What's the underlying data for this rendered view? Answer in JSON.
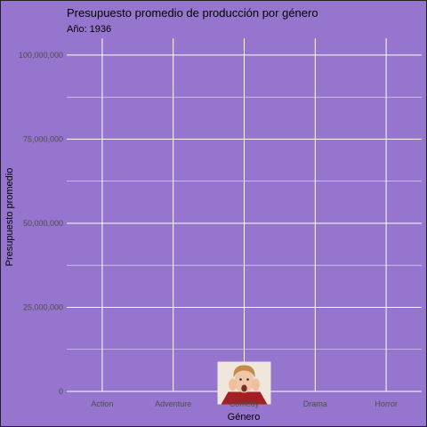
{
  "chart": {
    "title": "Presupuesto promedio de producción por género",
    "subtitle": "Año: 1936",
    "xlabel": "Género",
    "ylabel": "Presupuesto promedio"
  },
  "colors": {
    "background": "#9575cd",
    "grid": "#ffffff",
    "tick_text": "#4d4d4d"
  },
  "chart_data": {
    "type": "scatter",
    "title": "Presupuesto promedio de producción por género",
    "subtitle": "Año: 1936",
    "xlabel": "Género",
    "ylabel": "Presupuesto promedio",
    "categories": [
      "Action",
      "Adventure",
      "Comedy",
      "Drama",
      "Horror"
    ],
    "y_ticks": [
      0,
      25000000,
      50000000,
      75000000,
      100000000
    ],
    "y_tick_labels": [
      "0",
      "25,000,000",
      "50,000,000",
      "75,000,000",
      "100,000,000"
    ],
    "ylim": [
      0,
      105000000
    ],
    "grid": true,
    "legend": "none",
    "points": [
      {
        "category": "Comedy",
        "value": 2500000,
        "marker": "kid-face-photo"
      }
    ]
  }
}
